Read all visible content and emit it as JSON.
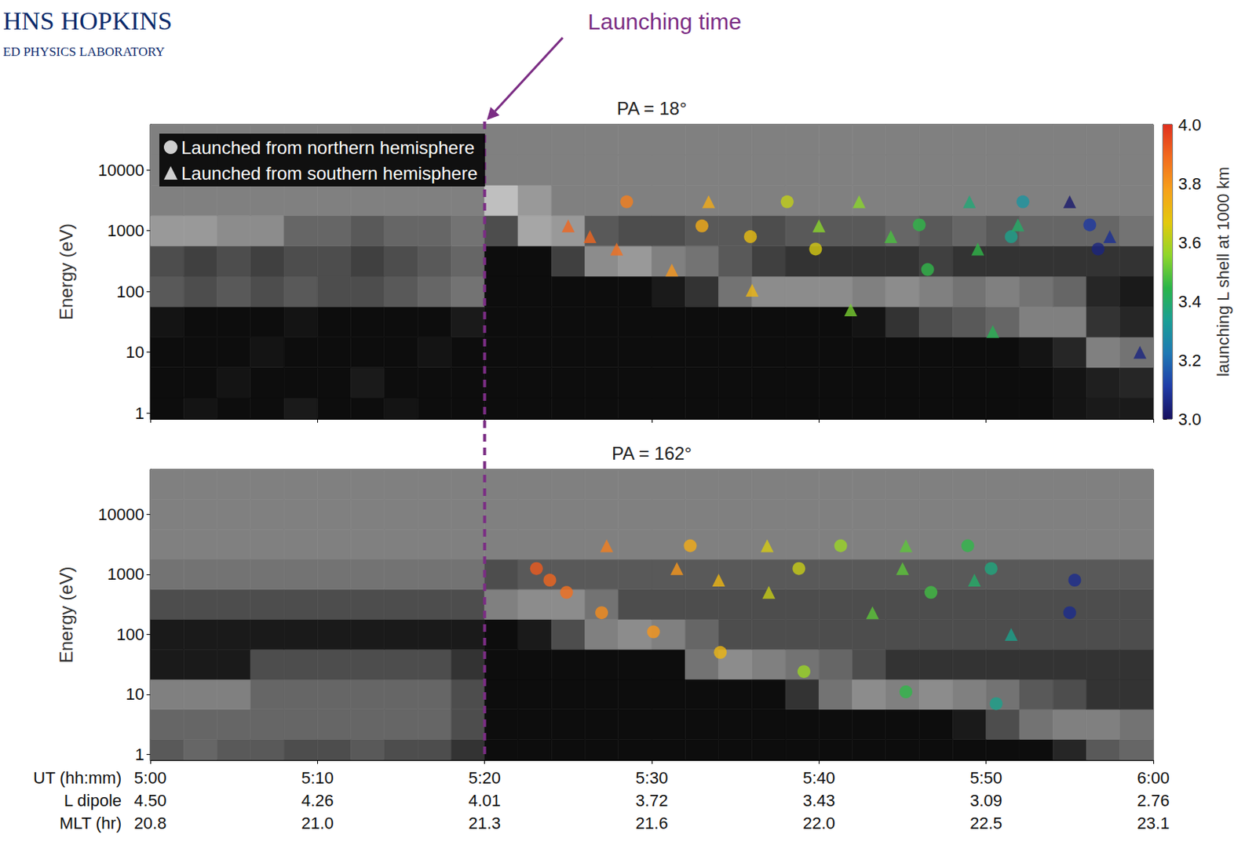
{
  "header": {
    "title": "HNS HOPKINS",
    "subtitle": "ED PHYSICS LABORATORY"
  },
  "annotation": {
    "text": "Launching time",
    "x": 320,
    "color": "#7b2d84"
  },
  "colorbar": {
    "label": "launching L shell at 1000 km",
    "lim": [
      3.0,
      4.0
    ],
    "ticks": [
      {
        "value": 3.0,
        "label": "3.0"
      },
      3.2,
      3.4,
      3.6,
      3.8,
      {
        "value": 4.0,
        "label": "4.0"
      }
    ],
    "colors": [
      "#16105e",
      "#1f3ca8",
      "#1f78b4",
      "#1a9e96",
      "#2ab54a",
      "#8fd62a",
      "#e3c90c",
      "#f7a11a",
      "#f26b1e",
      "#e0301e"
    ]
  },
  "chart_data": [
    {
      "type": "spectrogram",
      "title": "PA = 18°",
      "ylabel": "Energy (eV)",
      "log": "y",
      "grid": false,
      "tick_labels": "y",
      "legend": "upper left",
      "xlim": [
        300,
        360
      ],
      "xticks": [
        300,
        310,
        320,
        330,
        340,
        350,
        360
      ],
      "ylim": [
        0.8,
        56000
      ],
      "yticks": [
        1,
        10,
        100,
        1000,
        10000
      ],
      "cells": {
        "x_edges": [
          300,
          302,
          304,
          306,
          308,
          310,
          312,
          314,
          316,
          318,
          320,
          322,
          324,
          326,
          328,
          330,
          332,
          334,
          336,
          338,
          340,
          342,
          344,
          346,
          348,
          350,
          352,
          354,
          356,
          358,
          360
        ],
        "y_edges": [
          0.8,
          1.78,
          5.62,
          17.8,
          56.2,
          178,
          562,
          1778,
          5623,
          17783,
          56000
        ],
        "values": [
          [
            0.05,
            0.08,
            0.05,
            0.05,
            0.1,
            0.05,
            0.05,
            0.08,
            0.05,
            0.05,
            0.05,
            0.05,
            0.05,
            0.05,
            0.05,
            0.05,
            0.05,
            0.05,
            0.05,
            0.05,
            0.05,
            0.05,
            0.05,
            0.05,
            0.05,
            0.05,
            0.05,
            0.08,
            0.1,
            0.1
          ],
          [
            0.05,
            0.05,
            0.08,
            0.05,
            0.05,
            0.05,
            0.1,
            0.05,
            0.05,
            0.05,
            0.05,
            0.05,
            0.05,
            0.05,
            0.05,
            0.05,
            0.05,
            0.05,
            0.05,
            0.05,
            0.05,
            0.05,
            0.05,
            0.05,
            0.05,
            0.05,
            0.05,
            0.08,
            0.12,
            0.15
          ],
          [
            0.05,
            0.05,
            0.05,
            0.08,
            0.05,
            0.05,
            0.05,
            0.05,
            0.08,
            0.05,
            0.05,
            0.05,
            0.05,
            0.05,
            0.05,
            0.05,
            0.05,
            0.05,
            0.05,
            0.05,
            0.05,
            0.05,
            0.05,
            0.05,
            0.05,
            0.05,
            0.08,
            0.15,
            0.5,
            0.45
          ],
          [
            0.08,
            0.05,
            0.05,
            0.05,
            0.08,
            0.05,
            0.05,
            0.05,
            0.05,
            0.1,
            0.05,
            0.05,
            0.05,
            0.05,
            0.05,
            0.05,
            0.05,
            0.05,
            0.05,
            0.05,
            0.05,
            0.08,
            0.2,
            0.3,
            0.35,
            0.4,
            0.5,
            0.5,
            0.2,
            0.15
          ],
          [
            0.35,
            0.3,
            0.35,
            0.3,
            0.35,
            0.3,
            0.3,
            0.35,
            0.4,
            0.45,
            0.05,
            0.05,
            0.05,
            0.05,
            0.05,
            0.1,
            0.2,
            0.45,
            0.55,
            0.55,
            0.55,
            0.5,
            0.55,
            0.5,
            0.45,
            0.5,
            0.45,
            0.4,
            0.15,
            0.1
          ],
          [
            0.3,
            0.25,
            0.3,
            0.25,
            0.3,
            0.3,
            0.25,
            0.3,
            0.35,
            0.4,
            0.05,
            0.05,
            0.25,
            0.55,
            0.6,
            0.5,
            0.45,
            0.35,
            0.25,
            0.2,
            0.2,
            0.2,
            0.2,
            0.25,
            0.2,
            0.2,
            0.2,
            0.2,
            0.2,
            0.2
          ],
          [
            0.6,
            0.6,
            0.55,
            0.55,
            0.4,
            0.4,
            0.35,
            0.4,
            0.4,
            0.45,
            0.3,
            0.65,
            0.6,
            0.35,
            0.3,
            0.3,
            0.35,
            0.35,
            0.3,
            0.35,
            0.35,
            0.35,
            0.4,
            0.35,
            0.4,
            0.35,
            0.4,
            0.4,
            0.4,
            0.45
          ],
          [
            0.5,
            0.5,
            0.5,
            0.5,
            0.5,
            0.5,
            0.5,
            0.5,
            0.5,
            0.5,
            0.75,
            0.6,
            0.5,
            0.5,
            0.5,
            0.5,
            0.5,
            0.5,
            0.5,
            0.5,
            0.5,
            0.5,
            0.5,
            0.5,
            0.5,
            0.5,
            0.5,
            0.5,
            0.5,
            0.5
          ],
          [
            0.5,
            0.5,
            0.5,
            0.5,
            0.5,
            0.5,
            0.5,
            0.5,
            0.5,
            0.5,
            0.5,
            0.5,
            0.5,
            0.5,
            0.5,
            0.5,
            0.5,
            0.5,
            0.5,
            0.5,
            0.5,
            0.5,
            0.5,
            0.5,
            0.5,
            0.5,
            0.5,
            0.5,
            0.5,
            0.5
          ],
          [
            0.5,
            0.5,
            0.5,
            0.5,
            0.5,
            0.5,
            0.5,
            0.5,
            0.5,
            0.5,
            0.5,
            0.5,
            0.5,
            0.5,
            0.5,
            0.5,
            0.5,
            0.5,
            0.5,
            0.5,
            0.5,
            0.5,
            0.5,
            0.5,
            0.5,
            0.5,
            0.5,
            0.5,
            0.5,
            0.5
          ]
        ]
      },
      "series": [
        {
          "name": "Launched from northern hemisphere",
          "type": "scatter",
          "marker": "circle",
          "x": [
            328.5,
            333.0,
            335.9,
            338.1,
            339.8,
            346.0,
            346.5,
            352.2,
            351.5,
            356.2,
            356.7
          ],
          "y": [
            3000,
            1200,
            800,
            3000,
            500,
            1250,
            230,
            3000,
            800,
            1250,
            500
          ],
          "launch_L": [
            3.85,
            3.75,
            3.7,
            3.62,
            3.65,
            3.45,
            3.45,
            3.3,
            3.35,
            3.1,
            3.05
          ]
        },
        {
          "name": "Launched from southern hemisphere",
          "type": "scatter",
          "marker": "triangle",
          "x": [
            325.0,
            326.3,
            327.9,
            331.2,
            333.4,
            336.0,
            340.0,
            342.4,
            341.9,
            344.3,
            349.0,
            349.5,
            351.9,
            350.4,
            355.0,
            357.4,
            359.2
          ],
          "y": [
            1200,
            800,
            500,
            225,
            3000,
            105,
            1200,
            3000,
            50,
            800,
            3000,
            500,
            1250,
            22,
            3000,
            800,
            10
          ],
          "launch_L": [
            3.9,
            3.9,
            3.88,
            3.8,
            3.75,
            3.72,
            3.55,
            3.55,
            3.53,
            3.48,
            3.38,
            3.45,
            3.4,
            3.43,
            3.02,
            3.08,
            3.05
          ]
        }
      ]
    },
    {
      "type": "spectrogram",
      "title": "PA = 162°",
      "ylabel": "Energy (eV)",
      "log": "y",
      "grid": false,
      "xlabel": "UT (hh:mm)",
      "xlim": [
        300,
        360
      ],
      "xticks": [
        {
          "value": 300,
          "label": "5:00"
        },
        {
          "value": 310,
          "label": "5:10"
        },
        {
          "value": 320,
          "label": "5:20"
        },
        {
          "value": 330,
          "label": "5:30"
        },
        {
          "value": 340,
          "label": "5:40"
        },
        {
          "value": 350,
          "label": "5:50"
        },
        {
          "value": 360,
          "label": "6:00"
        }
      ],
      "x_rows": [
        {
          "title": "L dipole",
          "labels": [
            "4.50",
            "4.26",
            "4.01",
            "3.72",
            "3.43",
            "3.09",
            "2.76"
          ]
        },
        {
          "title": "MLT (hr)",
          "labels": [
            "20.8",
            "21.0",
            "21.3",
            "21.6",
            "22.0",
            "22.5",
            "23.1"
          ]
        }
      ],
      "ylim": [
        0.8,
        56000
      ],
      "yticks": [
        1,
        10,
        100,
        1000,
        10000
      ],
      "cells": {
        "x_edges": [
          300,
          302,
          304,
          306,
          308,
          310,
          312,
          314,
          316,
          318,
          320,
          322,
          324,
          326,
          328,
          330,
          332,
          334,
          336,
          338,
          340,
          342,
          344,
          346,
          348,
          350,
          352,
          354,
          356,
          358,
          360
        ],
        "y_edges": [
          0.8,
          1.78,
          5.62,
          17.8,
          56.2,
          178,
          562,
          1778,
          5623,
          17783,
          56000
        ],
        "values": [
          [
            0.35,
            0.4,
            0.35,
            0.35,
            0.3,
            0.3,
            0.35,
            0.3,
            0.3,
            0.2,
            0.05,
            0.05,
            0.05,
            0.05,
            0.05,
            0.05,
            0.05,
            0.05,
            0.05,
            0.05,
            0.05,
            0.05,
            0.05,
            0.05,
            0.05,
            0.05,
            0.05,
            0.15,
            0.35,
            0.4
          ],
          [
            0.4,
            0.4,
            0.4,
            0.4,
            0.4,
            0.4,
            0.4,
            0.4,
            0.4,
            0.3,
            0.05,
            0.05,
            0.05,
            0.05,
            0.05,
            0.05,
            0.05,
            0.05,
            0.05,
            0.05,
            0.05,
            0.05,
            0.05,
            0.05,
            0.1,
            0.3,
            0.45,
            0.5,
            0.5,
            0.45
          ],
          [
            0.5,
            0.5,
            0.5,
            0.4,
            0.4,
            0.4,
            0.4,
            0.4,
            0.4,
            0.3,
            0.05,
            0.05,
            0.05,
            0.05,
            0.05,
            0.05,
            0.05,
            0.05,
            0.05,
            0.2,
            0.45,
            0.55,
            0.5,
            0.55,
            0.5,
            0.45,
            0.35,
            0.3,
            0.2,
            0.2
          ],
          [
            0.1,
            0.1,
            0.1,
            0.3,
            0.3,
            0.3,
            0.3,
            0.3,
            0.3,
            0.2,
            0.05,
            0.05,
            0.05,
            0.05,
            0.05,
            0.05,
            0.45,
            0.55,
            0.5,
            0.45,
            0.4,
            0.3,
            0.2,
            0.2,
            0.2,
            0.2,
            0.2,
            0.2,
            0.2,
            0.2
          ],
          [
            0.1,
            0.1,
            0.1,
            0.1,
            0.1,
            0.1,
            0.1,
            0.1,
            0.1,
            0.1,
            0.05,
            0.1,
            0.3,
            0.5,
            0.55,
            0.5,
            0.4,
            0.3,
            0.3,
            0.3,
            0.3,
            0.3,
            0.3,
            0.3,
            0.3,
            0.3,
            0.3,
            0.3,
            0.3,
            0.3
          ],
          [
            0.3,
            0.3,
            0.3,
            0.3,
            0.3,
            0.3,
            0.3,
            0.3,
            0.3,
            0.3,
            0.5,
            0.55,
            0.55,
            0.45,
            0.3,
            0.3,
            0.3,
            0.3,
            0.3,
            0.3,
            0.3,
            0.3,
            0.3,
            0.3,
            0.3,
            0.3,
            0.3,
            0.3,
            0.3,
            0.3
          ],
          [
            0.45,
            0.45,
            0.45,
            0.45,
            0.45,
            0.45,
            0.45,
            0.45,
            0.45,
            0.45,
            0.3,
            0.35,
            0.35,
            0.35,
            0.35,
            0.35,
            0.35,
            0.35,
            0.35,
            0.35,
            0.35,
            0.35,
            0.35,
            0.35,
            0.35,
            0.35,
            0.35,
            0.35,
            0.35,
            0.35
          ],
          [
            0.5,
            0.5,
            0.5,
            0.5,
            0.5,
            0.5,
            0.5,
            0.5,
            0.5,
            0.5,
            0.5,
            0.5,
            0.5,
            0.5,
            0.5,
            0.5,
            0.5,
            0.5,
            0.5,
            0.5,
            0.5,
            0.5,
            0.5,
            0.5,
            0.5,
            0.5,
            0.5,
            0.5,
            0.5,
            0.5
          ],
          [
            0.5,
            0.5,
            0.5,
            0.5,
            0.5,
            0.5,
            0.5,
            0.5,
            0.5,
            0.5,
            0.5,
            0.5,
            0.5,
            0.5,
            0.5,
            0.5,
            0.5,
            0.5,
            0.5,
            0.5,
            0.5,
            0.5,
            0.5,
            0.5,
            0.5,
            0.5,
            0.5,
            0.5,
            0.5,
            0.5
          ],
          [
            0.5,
            0.5,
            0.5,
            0.5,
            0.5,
            0.5,
            0.5,
            0.5,
            0.5,
            0.5,
            0.5,
            0.5,
            0.5,
            0.5,
            0.5,
            0.5,
            0.5,
            0.5,
            0.5,
            0.5,
            0.5,
            0.5,
            0.5,
            0.5,
            0.5,
            0.5,
            0.5,
            0.5,
            0.5,
            0.5
          ]
        ]
      },
      "series": [
        {
          "type": "scatter",
          "marker": "circle",
          "x": [
            323.1,
            323.9,
            324.9,
            327.0,
            330.1,
            334.1,
            332.3,
            338.8,
            339.1,
            341.3,
            346.7,
            345.2,
            348.9,
            350.3,
            350.6,
            355.3,
            355.0
          ],
          "y": [
            1250,
            800,
            500,
            230,
            110,
            50,
            3000,
            1250,
            24,
            3000,
            500,
            11,
            3000,
            1250,
            7,
            800,
            230
          ],
          "launch_L": [
            3.92,
            3.9,
            3.88,
            3.82,
            3.8,
            3.72,
            3.75,
            3.63,
            3.57,
            3.57,
            3.47,
            3.45,
            3.45,
            3.37,
            3.35,
            3.07,
            3.07
          ]
        },
        {
          "type": "scatter",
          "marker": "triangle",
          "x": [
            327.3,
            331.5,
            334.0,
            336.9,
            337.0,
            343.2,
            345.0,
            345.2,
            349.3,
            351.5
          ],
          "y": [
            3000,
            1250,
            800,
            3000,
            500,
            230,
            1250,
            3000,
            800,
            100
          ],
          "launch_L": [
            3.85,
            3.8,
            3.72,
            3.65,
            3.63,
            3.5,
            3.5,
            3.5,
            3.4,
            3.35
          ]
        }
      ]
    }
  ]
}
